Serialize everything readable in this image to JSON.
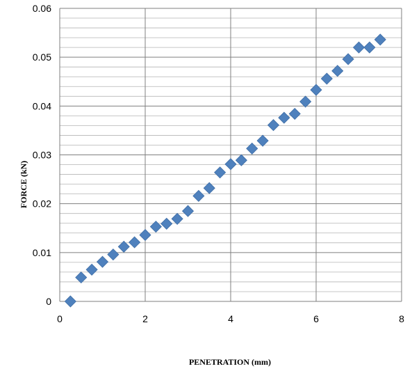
{
  "chart_data": {
    "type": "scatter",
    "xlabel": "PENETRATION (mm)",
    "ylabel": "FORCE (kN)",
    "xlim": [
      0,
      8
    ],
    "ylim": [
      0,
      0.06
    ],
    "x_ticks": [
      "0",
      "2",
      "4",
      "6",
      "8"
    ],
    "y_ticks": [
      "0",
      "0.01",
      "0.02",
      "0.03",
      "0.04",
      "0.05",
      "0.06"
    ],
    "grid": "major vertical every 2; horizontal every 0.002 with darker lines at 0.01",
    "legend": "none",
    "marker": "diamond",
    "marker_color": "#4F81BD",
    "series": [
      {
        "x": [
          0.25,
          0.5,
          0.75,
          1.0,
          1.25,
          1.5,
          1.75,
          2.0,
          2.25,
          2.5,
          2.75,
          3.0,
          3.25,
          3.5,
          3.75,
          4.0,
          4.25,
          4.5,
          4.75,
          5.0,
          5.25,
          5.5,
          5.75,
          6.0,
          6.25,
          6.5,
          6.75,
          7.0,
          7.25,
          7.5
        ],
        "y": [
          0.0,
          0.0049,
          0.0065,
          0.0081,
          0.0096,
          0.0112,
          0.0121,
          0.0136,
          0.0153,
          0.0159,
          0.0169,
          0.0185,
          0.0216,
          0.0232,
          0.0264,
          0.0281,
          0.0289,
          0.0313,
          0.0329,
          0.0361,
          0.0376,
          0.0384,
          0.0409,
          0.0433,
          0.0456,
          0.0472,
          0.0496,
          0.052,
          0.052,
          0.0536
        ]
      }
    ]
  }
}
